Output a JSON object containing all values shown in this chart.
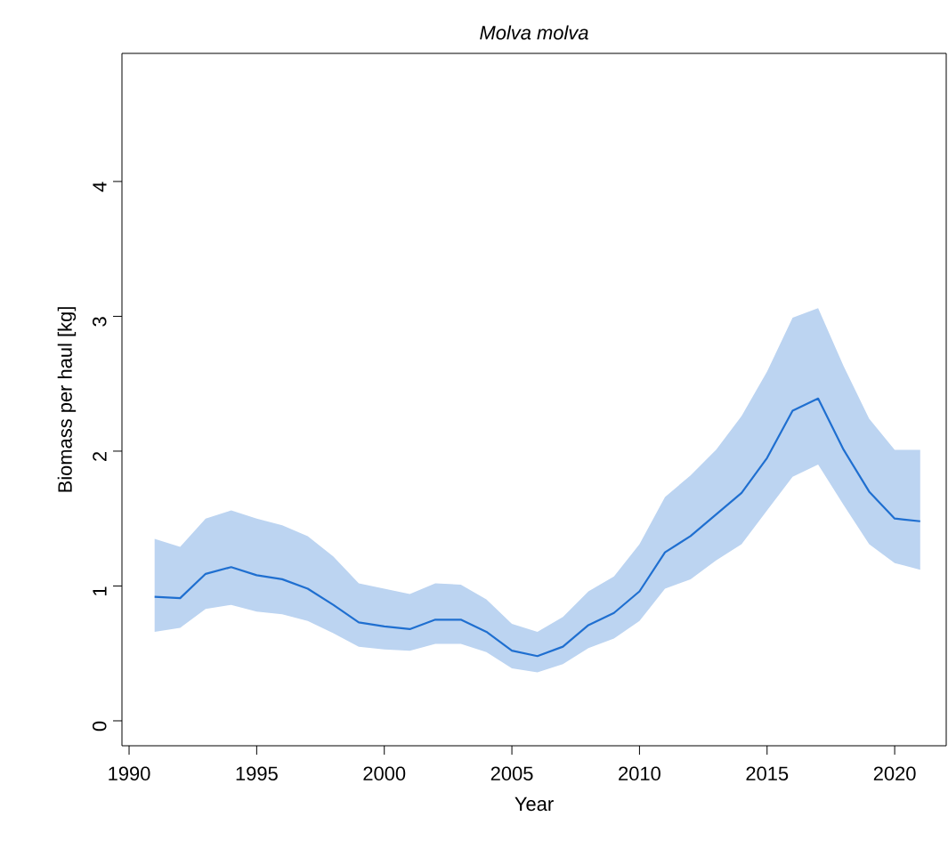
{
  "chart_data": {
    "type": "line",
    "title": "Molva molva",
    "xlabel": "Year",
    "ylabel": "Biomass per haul [kg]",
    "xlim": [
      1989.72,
      2022.02
    ],
    "ylim": [
      -0.185,
      4.95
    ],
    "xticks": [
      1990,
      1995,
      2000,
      2005,
      2010,
      2015,
      2020
    ],
    "yticks": [
      0,
      1,
      2,
      3,
      4
    ],
    "grid": false,
    "marker": "none",
    "line_style": "solid",
    "series": [
      {
        "color": "#1f6fd0",
        "x": [
          1991,
          1992,
          1993,
          1994,
          1995,
          1996,
          1997,
          1998,
          1999,
          2000,
          2001,
          2002,
          2003,
          2004,
          2005,
          2006,
          2007,
          2008,
          2009,
          2010,
          2011,
          2012,
          2013,
          2014,
          2015,
          2016,
          2017,
          2018,
          2019,
          2020,
          2021
        ],
        "values": [
          0.92,
          0.91,
          1.09,
          1.14,
          1.08,
          1.05,
          0.98,
          0.86,
          0.73,
          0.7,
          0.68,
          0.75,
          0.75,
          0.66,
          0.52,
          0.48,
          0.55,
          0.71,
          0.8,
          0.96,
          1.25,
          1.37,
          1.53,
          1.69,
          1.95,
          2.3,
          2.39,
          2.01,
          1.7,
          1.5,
          1.48
        ],
        "upper": [
          1.35,
          1.29,
          1.5,
          1.56,
          1.5,
          1.45,
          1.37,
          1.22,
          1.02,
          0.98,
          0.94,
          1.02,
          1.01,
          0.9,
          0.72,
          0.66,
          0.77,
          0.96,
          1.07,
          1.31,
          1.66,
          1.82,
          2.01,
          2.26,
          2.59,
          2.99,
          3.06,
          2.63,
          2.24,
          2.01,
          2.01
        ],
        "lower": [
          0.66,
          0.69,
          0.83,
          0.86,
          0.81,
          0.79,
          0.74,
          0.65,
          0.55,
          0.53,
          0.52,
          0.57,
          0.57,
          0.51,
          0.39,
          0.36,
          0.42,
          0.54,
          0.61,
          0.74,
          0.98,
          1.05,
          1.19,
          1.31,
          1.56,
          1.81,
          1.9,
          1.6,
          1.31,
          1.17,
          1.12
        ]
      }
    ]
  }
}
